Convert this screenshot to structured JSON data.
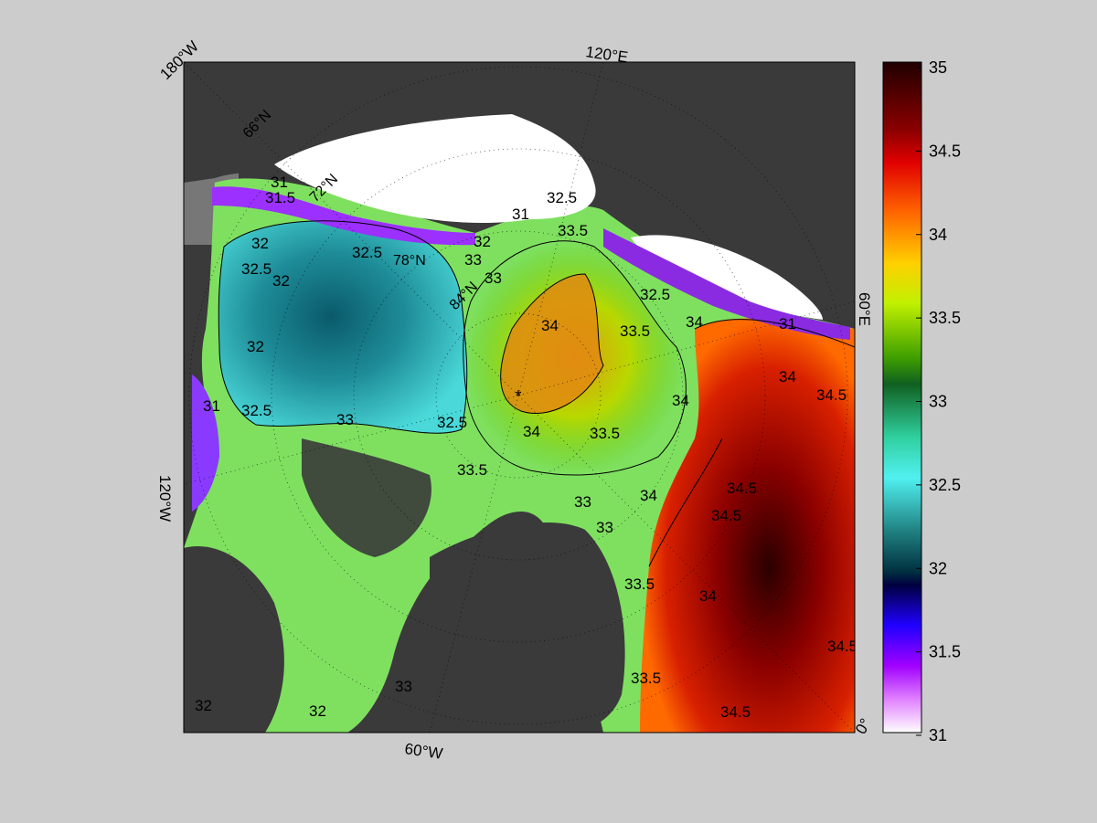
{
  "map": {
    "longitude_labels": [
      "180°W",
      "120°E",
      "60°E",
      "0°",
      "60°W",
      "120°W"
    ],
    "latitude_labels": [
      "66°N",
      "72°N",
      "78°N",
      "84°N"
    ],
    "contour_labels": [
      "31",
      "31.5",
      "32",
      "32.5",
      "32",
      "32.5",
      "32",
      "32",
      "32.5",
      "78°N",
      "33",
      "33",
      "32",
      "31",
      "31",
      "32.5",
      "33.5",
      "33.5",
      "34",
      "33.5",
      "32.5",
      "34",
      "34",
      "31",
      "34",
      "34.5",
      "34",
      "33",
      "32.5",
      "33",
      "33.5",
      "33.5",
      "34",
      "33",
      "34.5",
      "33",
      "34",
      "34.5",
      "33.5",
      "34.5",
      "34.5",
      "34.5",
      "32",
      "32",
      "33",
      "32"
    ],
    "center_marker": "*"
  },
  "colorbar": {
    "ticks": [
      "35",
      "34.5",
      "34",
      "33.5",
      "33",
      "32.5",
      "32",
      "31.5",
      "31"
    ],
    "range": [
      31,
      35
    ]
  },
  "colors": {
    "background": "#cccccc",
    "land": "#3a3a3a",
    "ice": "#ffffff"
  }
}
